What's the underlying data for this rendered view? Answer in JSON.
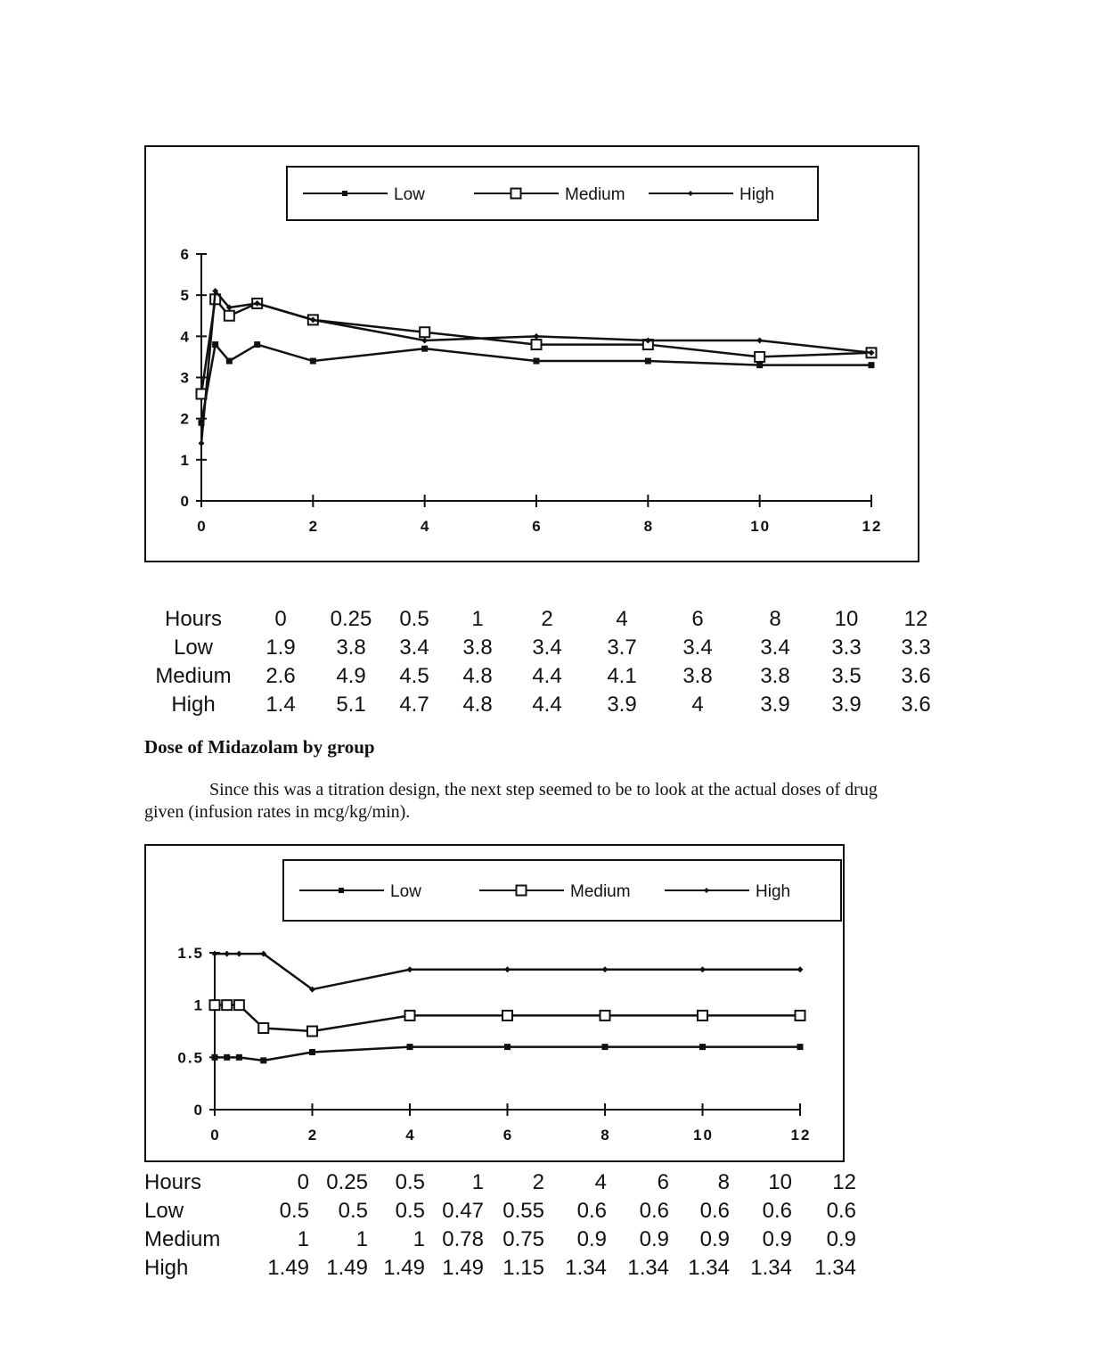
{
  "chart_data": [
    {
      "type": "line",
      "title": "",
      "xlabel": "",
      "ylabel": "",
      "x": [
        0,
        0.25,
        0.5,
        1,
        2,
        4,
        6,
        8,
        10,
        12
      ],
      "xticks": [
        0,
        2,
        4,
        6,
        8,
        10,
        12
      ],
      "xtick_labels": [
        "0",
        "2",
        "4",
        "6",
        "8",
        "10",
        "12"
      ],
      "yticks": [
        0,
        1,
        2,
        3,
        4,
        5,
        6
      ],
      "ytick_labels": [
        "0",
        "1",
        "2",
        "3",
        "4",
        "5",
        "6"
      ],
      "xlim": [
        0,
        12
      ],
      "ylim": [
        0,
        6
      ],
      "grid": false,
      "legend_position": "top-center",
      "series": [
        {
          "name": "Low",
          "marker": "filled-square",
          "values": [
            1.9,
            3.8,
            3.4,
            3.8,
            3.4,
            3.7,
            3.4,
            3.4,
            3.3,
            3.3
          ]
        },
        {
          "name": "Medium",
          "marker": "open-square",
          "values": [
            2.6,
            4.9,
            4.5,
            4.8,
            4.4,
            4.1,
            3.8,
            3.8,
            3.5,
            3.6
          ]
        },
        {
          "name": "High",
          "marker": "diamond",
          "values": [
            1.4,
            5.1,
            4.7,
            4.8,
            4.4,
            3.9,
            4,
            3.9,
            3.9,
            3.6
          ]
        }
      ]
    },
    {
      "type": "line",
      "title": "",
      "xlabel": "",
      "ylabel": "",
      "x": [
        0,
        0.25,
        0.5,
        1,
        2,
        4,
        6,
        8,
        10,
        12
      ],
      "xticks": [
        0,
        2,
        4,
        6,
        8,
        10,
        12
      ],
      "xtick_labels": [
        "0",
        "2",
        "4",
        "6",
        "8",
        "10",
        "12"
      ],
      "yticks": [
        0,
        0.5,
        1,
        1.5
      ],
      "ytick_labels": [
        "0",
        "0.5",
        "1",
        "1.5"
      ],
      "xlim": [
        0,
        12
      ],
      "ylim": [
        0,
        1.5
      ],
      "grid": false,
      "legend_position": "top-center",
      "series": [
        {
          "name": "Low",
          "marker": "filled-square",
          "values": [
            0.5,
            0.5,
            0.5,
            0.47,
            0.55,
            0.6,
            0.6,
            0.6,
            0.6,
            0.6
          ]
        },
        {
          "name": "Medium",
          "marker": "open-square",
          "values": [
            1,
            1,
            1,
            0.78,
            0.75,
            0.9,
            0.9,
            0.9,
            0.9,
            0.9
          ]
        },
        {
          "name": "High",
          "marker": "diamond",
          "values": [
            1.49,
            1.49,
            1.49,
            1.49,
            1.15,
            1.34,
            1.34,
            1.34,
            1.34,
            1.34
          ]
        }
      ]
    }
  ],
  "table1": {
    "rows": [
      [
        "Hours",
        "0",
        "0.25",
        "0.5",
        "1",
        "2",
        "4",
        "6",
        "8",
        "10",
        "12"
      ],
      [
        "Low",
        "1.9",
        "3.8",
        "3.4",
        "3.8",
        "3.4",
        "3.7",
        "3.4",
        "3.4",
        "3.3",
        "3.3"
      ],
      [
        "Medium",
        "2.6",
        "4.9",
        "4.5",
        "4.8",
        "4.4",
        "4.1",
        "3.8",
        "3.8",
        "3.5",
        "3.6"
      ],
      [
        "High",
        "1.4",
        "5.1",
        "4.7",
        "4.8",
        "4.4",
        "3.9",
        "4",
        "3.9",
        "3.9",
        "3.6"
      ]
    ]
  },
  "section": {
    "heading": "Dose of Midazolam by group",
    "paragraph": "Since this was a titration design, the next step seemed to be to look at the actual doses of drug given (infusion rates in mcg/kg/min)."
  },
  "table2": {
    "rows": [
      [
        "Hours",
        "0",
        "0.25",
        "0.5",
        "1",
        "2",
        "4",
        "6",
        "8",
        "10",
        "12"
      ],
      [
        "Low",
        "0.5",
        "0.5",
        "0.5",
        "0.47",
        "0.55",
        "0.6",
        "0.6",
        "0.6",
        "0.6",
        "0.6"
      ],
      [
        "Medium",
        "1",
        "1",
        "1",
        "0.78",
        "0.75",
        "0.9",
        "0.9",
        "0.9",
        "0.9",
        "0.9"
      ],
      [
        "High",
        "1.49",
        "1.49",
        "1.49",
        "1.49",
        "1.15",
        "1.34",
        "1.34",
        "1.34",
        "1.34",
        "1.34"
      ]
    ]
  },
  "colors": {
    "ink": "#111111",
    "background": "#ffffff"
  }
}
